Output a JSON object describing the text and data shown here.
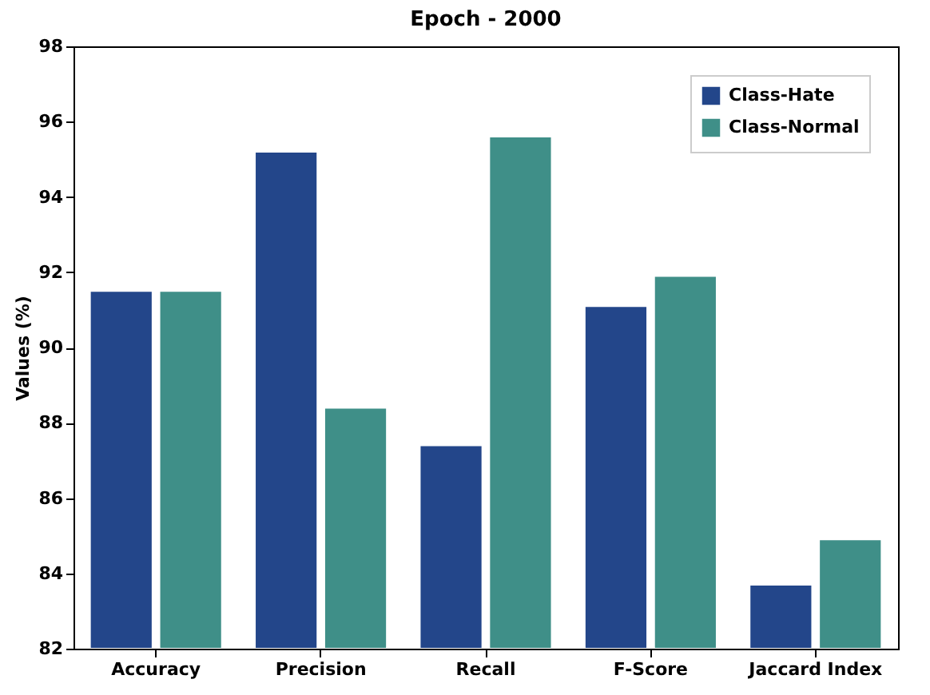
{
  "chart_data": {
    "type": "bar",
    "title": "Epoch - 2000",
    "ylabel": "Values (%)",
    "categories": [
      "Accuracy",
      "Precision",
      "Recall",
      "F-Score",
      "Jaccard Index"
    ],
    "series": [
      {
        "name": "Class-Hate",
        "color": "#23468a",
        "values": [
          91.5,
          95.2,
          87.4,
          91.1,
          83.7
        ]
      },
      {
        "name": "Class-Normal",
        "color": "#3f8f88",
        "values": [
          91.5,
          88.4,
          95.6,
          91.9,
          84.9
        ]
      }
    ],
    "ylim": [
      82,
      98
    ],
    "yticks": [
      82,
      84,
      86,
      88,
      90,
      92,
      94,
      96,
      98
    ],
    "grid": false,
    "legend": "top right"
  }
}
